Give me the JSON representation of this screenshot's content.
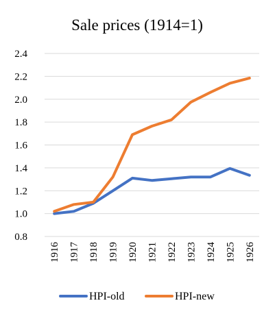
{
  "chart_data": {
    "type": "line",
    "title": "Sale prices (1914=1)",
    "xlabel": "",
    "ylabel": "",
    "categories": [
      "1916",
      "1917",
      "1918",
      "1919",
      "1920",
      "1921",
      "1922",
      "1923",
      "1924",
      "1925",
      "1926"
    ],
    "ylim": [
      0.8,
      2.4
    ],
    "yticks": [
      "0.8",
      "1.0",
      "1.2",
      "1.4",
      "1.6",
      "1.8",
      "2.0",
      "2.2",
      "2.4"
    ],
    "grid": true,
    "legend_position": "bottom",
    "series": [
      {
        "name": "HPI-old",
        "color": "#4472c4",
        "values": [
          1.0,
          1.02,
          1.09,
          1.2,
          1.31,
          1.29,
          1.305,
          1.32,
          1.32,
          1.395,
          1.335
        ]
      },
      {
        "name": "HPI-new",
        "color": "#ed7d31",
        "values": [
          1.02,
          1.08,
          1.1,
          1.32,
          1.69,
          1.765,
          1.82,
          1.975,
          2.06,
          2.14,
          2.185
        ]
      }
    ]
  }
}
